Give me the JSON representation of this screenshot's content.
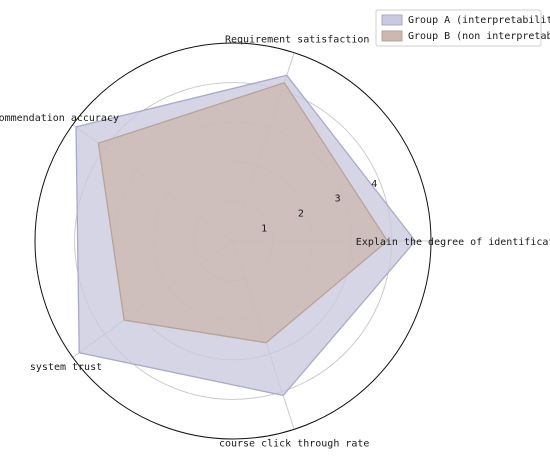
{
  "chart_data": {
    "type": "radar",
    "title": "",
    "axes": [
      "Explain the degree of identification",
      "Requirement satisfaction",
      "recommendation accuracy",
      "system trust",
      "course click through rate"
    ],
    "radial_ticks": [
      "1",
      "2",
      "3",
      "4"
    ],
    "rlim": [
      0,
      5
    ],
    "grid": true,
    "legend_position": "top-right",
    "series": [
      {
        "name": "Group A (interpretability)",
        "values": [
          4.6,
          4.4,
          4.9,
          4.8,
          4.1
        ],
        "fill": "#c9c9df",
        "stroke": "#a9a9cf"
      },
      {
        "name": "Group B (non interpretable)",
        "values": [
          3.9,
          4.2,
          4.2,
          3.4,
          2.7
        ],
        "fill": "#cdb8af",
        "stroke": "#b8a39a"
      }
    ]
  }
}
